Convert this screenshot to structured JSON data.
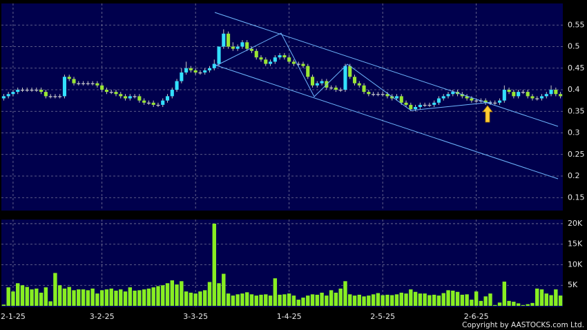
{
  "chart_data": [
    {
      "type": "candlestick",
      "categories": [
        null,
        null,
        "2-1-25",
        null,
        null,
        null,
        null,
        null,
        null,
        null,
        null,
        null,
        null,
        null,
        null,
        null,
        null,
        null,
        null,
        null,
        null,
        "3-2-25",
        null,
        null,
        null,
        null,
        null,
        null,
        null,
        null,
        null,
        null,
        null,
        null,
        null,
        null,
        null,
        null,
        null,
        null,
        null,
        "3-3-25",
        null,
        null,
        null,
        null,
        null,
        null,
        null,
        null,
        null,
        null,
        null,
        null,
        null,
        null,
        null,
        null,
        null,
        null,
        null,
        "1-4-25",
        null,
        null,
        null,
        null,
        null,
        null,
        null,
        null,
        null,
        null,
        null,
        null,
        null,
        null,
        null,
        null,
        null,
        null,
        null,
        "2-5-25",
        null,
        null,
        null,
        null,
        null,
        null,
        null,
        null,
        null,
        null,
        null,
        null,
        null,
        null,
        null,
        null,
        null,
        null,
        null,
        "2-6-25",
        null,
        null,
        null,
        null,
        null,
        null,
        null,
        null,
        null,
        null,
        null,
        null,
        null,
        null,
        null,
        null,
        null,
        null
      ],
      "open": [
        0.38,
        0.385,
        0.39,
        0.395,
        0.4,
        0.4,
        0.4,
        0.4,
        0.4,
        0.395,
        0.385,
        0.385,
        0.385,
        0.385,
        0.43,
        0.425,
        0.415,
        0.415,
        0.415,
        0.415,
        0.415,
        0.41,
        0.4,
        0.395,
        0.395,
        0.39,
        0.385,
        0.38,
        0.385,
        0.385,
        0.375,
        0.37,
        0.37,
        0.365,
        0.365,
        0.375,
        0.385,
        0.4,
        0.42,
        0.44,
        0.45,
        0.445,
        0.44,
        0.44,
        0.445,
        0.45,
        0.46,
        0.5,
        0.53,
        0.5,
        0.495,
        0.5,
        0.51,
        0.495,
        0.49,
        0.475,
        0.47,
        0.46,
        0.465,
        0.475,
        0.48,
        0.475,
        0.465,
        0.46,
        0.46,
        0.455,
        0.43,
        0.41,
        0.415,
        0.42,
        0.405,
        0.405,
        0.4,
        0.4,
        0.455,
        0.43,
        0.415,
        0.41,
        0.395,
        0.39,
        0.39,
        0.39,
        0.39,
        0.385,
        0.38,
        0.385,
        0.37,
        0.365,
        0.355,
        0.36,
        0.365,
        0.365,
        0.365,
        0.37,
        0.38,
        0.385,
        0.39,
        0.395,
        0.39,
        0.385,
        0.38,
        0.375,
        0.375,
        0.375,
        0.37,
        0.37,
        0.37,
        0.375,
        0.4,
        0.395,
        0.385,
        0.395,
        0.395,
        0.385,
        0.38,
        0.38,
        0.385,
        0.39,
        0.4,
        0.39
      ],
      "high": [
        0.39,
        0.395,
        0.4,
        0.405,
        0.405,
        0.405,
        0.405,
        0.405,
        0.405,
        0.4,
        0.39,
        0.39,
        0.39,
        0.435,
        0.435,
        0.43,
        0.42,
        0.42,
        0.42,
        0.42,
        0.42,
        0.415,
        0.405,
        0.4,
        0.4,
        0.395,
        0.39,
        0.39,
        0.39,
        0.39,
        0.38,
        0.375,
        0.375,
        0.37,
        0.38,
        0.39,
        0.405,
        0.425,
        0.45,
        0.465,
        0.455,
        0.45,
        0.445,
        0.45,
        0.455,
        0.47,
        0.5,
        0.54,
        0.535,
        0.51,
        0.505,
        0.515,
        0.515,
        0.5,
        0.495,
        0.48,
        0.475,
        0.47,
        0.48,
        0.485,
        0.485,
        0.48,
        0.47,
        0.465,
        0.465,
        0.46,
        0.435,
        0.42,
        0.425,
        0.425,
        0.41,
        0.41,
        0.405,
        0.46,
        0.46,
        0.435,
        0.42,
        0.415,
        0.4,
        0.395,
        0.395,
        0.395,
        0.395,
        0.39,
        0.39,
        0.39,
        0.375,
        0.37,
        0.365,
        0.37,
        0.37,
        0.37,
        0.375,
        0.385,
        0.39,
        0.395,
        0.4,
        0.4,
        0.395,
        0.39,
        0.385,
        0.38,
        0.38,
        0.38,
        0.375,
        0.375,
        0.38,
        0.41,
        0.405,
        0.4,
        0.4,
        0.4,
        0.4,
        0.39,
        0.385,
        0.39,
        0.395,
        0.41,
        0.405,
        0.395
      ],
      "low": [
        0.375,
        0.38,
        0.385,
        0.39,
        0.395,
        0.395,
        0.395,
        0.395,
        0.39,
        0.38,
        0.38,
        0.38,
        0.38,
        0.38,
        0.42,
        0.41,
        0.41,
        0.41,
        0.41,
        0.41,
        0.405,
        0.395,
        0.39,
        0.39,
        0.385,
        0.38,
        0.375,
        0.375,
        0.38,
        0.37,
        0.365,
        0.365,
        0.36,
        0.36,
        0.36,
        0.37,
        0.38,
        0.395,
        0.415,
        0.435,
        0.44,
        0.435,
        0.435,
        0.435,
        0.44,
        0.445,
        0.455,
        0.495,
        0.495,
        0.49,
        0.49,
        0.495,
        0.49,
        0.485,
        0.47,
        0.465,
        0.455,
        0.455,
        0.46,
        0.47,
        0.47,
        0.46,
        0.455,
        0.455,
        0.45,
        0.425,
        0.405,
        0.405,
        0.41,
        0.4,
        0.4,
        0.395,
        0.395,
        0.395,
        0.425,
        0.41,
        0.405,
        0.39,
        0.385,
        0.385,
        0.385,
        0.385,
        0.38,
        0.375,
        0.375,
        0.365,
        0.36,
        0.35,
        0.35,
        0.355,
        0.36,
        0.36,
        0.36,
        0.365,
        0.375,
        0.38,
        0.385,
        0.385,
        0.38,
        0.375,
        0.37,
        0.37,
        0.37,
        0.365,
        0.365,
        0.365,
        0.365,
        0.37,
        0.39,
        0.38,
        0.38,
        0.39,
        0.38,
        0.375,
        0.375,
        0.375,
        0.38,
        0.385,
        0.385,
        0.38
      ],
      "close": [
        0.385,
        0.39,
        0.395,
        0.4,
        0.4,
        0.4,
        0.4,
        0.4,
        0.395,
        0.385,
        0.385,
        0.385,
        0.385,
        0.43,
        0.425,
        0.415,
        0.415,
        0.415,
        0.415,
        0.415,
        0.41,
        0.4,
        0.395,
        0.395,
        0.39,
        0.385,
        0.38,
        0.385,
        0.385,
        0.375,
        0.37,
        0.37,
        0.365,
        0.365,
        0.375,
        0.385,
        0.4,
        0.42,
        0.44,
        0.45,
        0.445,
        0.44,
        0.44,
        0.445,
        0.45,
        0.46,
        0.5,
        0.53,
        0.5,
        0.495,
        0.5,
        0.51,
        0.495,
        0.49,
        0.475,
        0.47,
        0.46,
        0.465,
        0.475,
        0.48,
        0.475,
        0.465,
        0.46,
        0.46,
        0.455,
        0.43,
        0.41,
        0.415,
        0.42,
        0.405,
        0.405,
        0.4,
        0.4,
        0.455,
        0.43,
        0.415,
        0.41,
        0.395,
        0.39,
        0.39,
        0.39,
        0.39,
        0.385,
        0.38,
        0.385,
        0.37,
        0.365,
        0.355,
        0.36,
        0.365,
        0.365,
        0.365,
        0.37,
        0.38,
        0.385,
        0.39,
        0.395,
        0.39,
        0.385,
        0.38,
        0.375,
        0.375,
        0.375,
        0.37,
        0.37,
        0.37,
        0.375,
        0.4,
        0.395,
        0.385,
        0.395,
        0.395,
        0.385,
        0.38,
        0.38,
        0.385,
        0.39,
        0.4,
        0.39,
        0.385
      ],
      "up_color": "#33e0ff",
      "down_color": "#99e633",
      "flat_color": "#d0d0d0",
      "ylim": [
        0.12,
        0.6
      ],
      "yticks": [
        0.15,
        0.2,
        0.25,
        0.3,
        0.35,
        0.4,
        0.45,
        0.5,
        0.55
      ],
      "grid": true
    },
    {
      "type": "bar",
      "values": [
        300,
        4500,
        3500,
        5500,
        5000,
        4600,
        4000,
        4200,
        3200,
        4500,
        1100,
        8000,
        5000,
        4200,
        4600,
        3800,
        4000,
        4000,
        3800,
        4200,
        3000,
        3800,
        4000,
        4200,
        3700,
        4000,
        3500,
        4500,
        3700,
        3800,
        4000,
        4200,
        4500,
        4800,
        5000,
        5500,
        6200,
        5200,
        6000,
        3500,
        3200,
        3000,
        3500,
        3800,
        5800,
        20000,
        5500,
        7800,
        3000,
        2500,
        2800,
        3000,
        3300,
        2800,
        2500,
        2700,
        2800,
        2500,
        6700,
        2700,
        2800,
        3000,
        2500,
        1500,
        2000,
        2500,
        2800,
        2700,
        3200,
        2500,
        3800,
        3200,
        4200,
        6000,
        2800,
        2500,
        2700,
        2300,
        2500,
        2800,
        3100,
        2600,
        2700,
        2600,
        2800,
        3200,
        3000,
        4000,
        3400,
        3000,
        3000,
        2600,
        2700,
        2500,
        3100,
        3800,
        3700,
        3400,
        2700,
        2800,
        1500,
        3500,
        1200,
        2300,
        3000,
        200,
        800,
        5900,
        1200,
        1000,
        600,
        200,
        400,
        700,
        4200,
        4000,
        3000,
        2600,
        4000,
        2500
      ],
      "color": "#88ee22",
      "ylim": [
        0,
        21000
      ],
      "yticks": [
        {
          "value": 5000,
          "label": "5K"
        },
        {
          "value": 10000,
          "label": "10K"
        },
        {
          "value": 15000,
          "label": "15K"
        },
        {
          "value": 20000,
          "label": "20K"
        }
      ],
      "grid": true
    }
  ],
  "footer": "Copyright by AASTOCKS.com Ltd."
}
